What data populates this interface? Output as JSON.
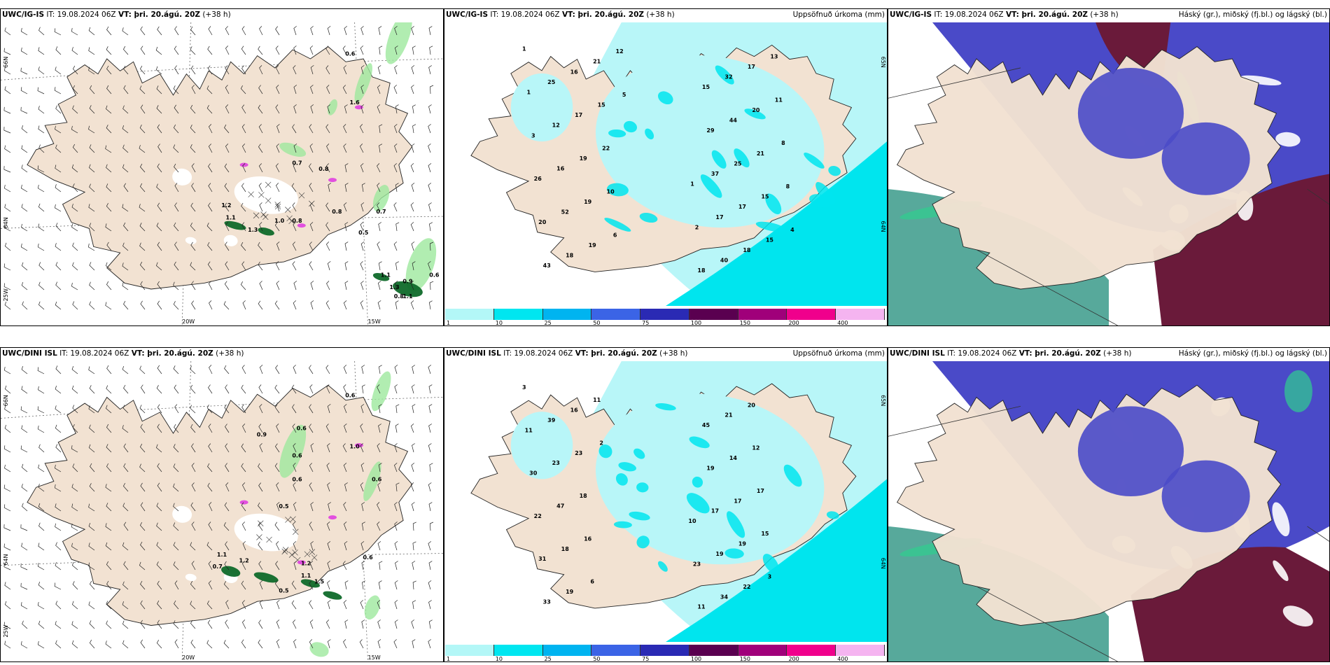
{
  "rows": [
    {
      "model": "UWC/IG-IS",
      "panels": [
        {
          "type": "wind",
          "model": "UWC/IG-IS",
          "it": " IT: 19.08.2024 06Z ",
          "vt_label": "VT:",
          "vt": " þri. 20.ágú. 20Z",
          "lead": " (+38 h)",
          "right": "",
          "values": [
            "0.6",
            "1.6",
            "0.7",
            "0.8",
            "0.8",
            "1.2",
            "1.1",
            "1.3",
            "1.0",
            "0.8",
            "0.7",
            "0.5",
            "1.1",
            "1.3",
            "1.1",
            "0.6",
            "0.9",
            "0.8"
          ],
          "lat_labels": [
            "66N",
            "64N",
            "25W"
          ],
          "lon_labels": [
            "20W",
            "15W"
          ]
        },
        {
          "type": "precip",
          "model": "UWC/IG-IS",
          "it": " IT: 19.08.2024 06Z ",
          "vt_label": "VT:",
          "vt": " þri. 20.ágú. 20Z",
          "lead": " (+38 h)",
          "right": "Uppsöfnuð úrkoma (mm)",
          "values": [
            "1",
            "1",
            "1",
            "2",
            "3",
            "18",
            "26",
            "15",
            "20",
            "29",
            "43",
            "37",
            "25",
            "17",
            "12",
            "40",
            "16",
            "32",
            "52",
            "44",
            "18",
            "25",
            "16",
            "17",
            "17",
            "18",
            "19",
            "17",
            "19",
            "20",
            "19",
            "21",
            "21",
            "15",
            "15",
            "15",
            "22",
            "13",
            "10",
            "11",
            "6",
            "8",
            "12",
            "8",
            "5",
            "4"
          ],
          "lat_labels": [
            "65N",
            "64N"
          ]
        },
        {
          "type": "cloud",
          "model": "UWC/IG-IS",
          "it": " IT: 19.08.2024 06Z ",
          "vt_label": "VT:",
          "vt": " þri. 20.ágú. 20Z",
          "lead": " (+38 h)",
          "right": "Háský (gr.), miðský (fj.bl.) og lágský (bl.)"
        }
      ]
    },
    {
      "model": "UWC/DINI ISL",
      "panels": [
        {
          "type": "wind",
          "model": "UWC/DINI ISL",
          "it": " IT: 19.08.2024 06Z ",
          "vt_label": "VT:",
          "vt": " þri. 20.ágú. 20Z",
          "lead": " (+38 h)",
          "right": "",
          "values": [
            "0.6",
            "0.9",
            "0.6",
            "1.0",
            "0.6",
            "0.6",
            "0.6",
            "0.5",
            "0.7",
            "1.1",
            "1.2",
            "0.5",
            "1.2",
            "0.6",
            "1.1",
            "1.5"
          ],
          "lat_labels": [
            "66N",
            "64N",
            "25W"
          ],
          "lon_labels": [
            "20W",
            "15W"
          ]
        },
        {
          "type": "precip",
          "model": "UWC/DINI ISL",
          "it": " IT: 19.08.2024 06Z ",
          "vt_label": "VT:",
          "vt": " þri. 20.ágú. 20Z",
          "lead": " (+38 h)",
          "right": "Uppsöfnuð úrkoma (mm)",
          "values": [
            "3",
            "10",
            "11",
            "23",
            "30",
            "11",
            "22",
            "45",
            "31",
            "19",
            "33",
            "17",
            "39",
            "19",
            "23",
            "34",
            "47",
            "21",
            "18",
            "14",
            "19",
            "17",
            "16",
            "19",
            "23",
            "22",
            "18",
            "20",
            "16",
            "12",
            "6",
            "17",
            "11",
            "15",
            "2",
            "3"
          ],
          "lat_labels": [
            "65N",
            "64N"
          ]
        },
        {
          "type": "cloud",
          "model": "UWC/DINI ISL",
          "it": " IT: 19.08.2024 06Z ",
          "vt_label": "VT:",
          "vt": " þri. 20.ágú. 20Z",
          "lead": " (+38 h)",
          "right": "Háský (gr.), miðský (fj.bl.) og lágský (bl.)"
        }
      ]
    }
  ],
  "colorbar": {
    "ticks": [
      "1",
      "10",
      "25",
      "50",
      "75",
      "100",
      "150",
      "200",
      "400"
    ],
    "colors": [
      "#b3f7f7",
      "#00e6f0",
      "#00b4f0",
      "#3b64e6",
      "#2a2ab4",
      "#5a0050",
      "#a0007a",
      "#f0008c",
      "#f5b4f0"
    ]
  },
  "colors": {
    "land": "#f2e2d2",
    "sea_light": "#b8f6f8",
    "sea_cyan": "#00e5ee",
    "mid_cloud": "#4a4ac8",
    "high_cloud": "#6a1a3a",
    "low_cloud": "#3a9a8a",
    "precip_green": "#9ee89e"
  }
}
